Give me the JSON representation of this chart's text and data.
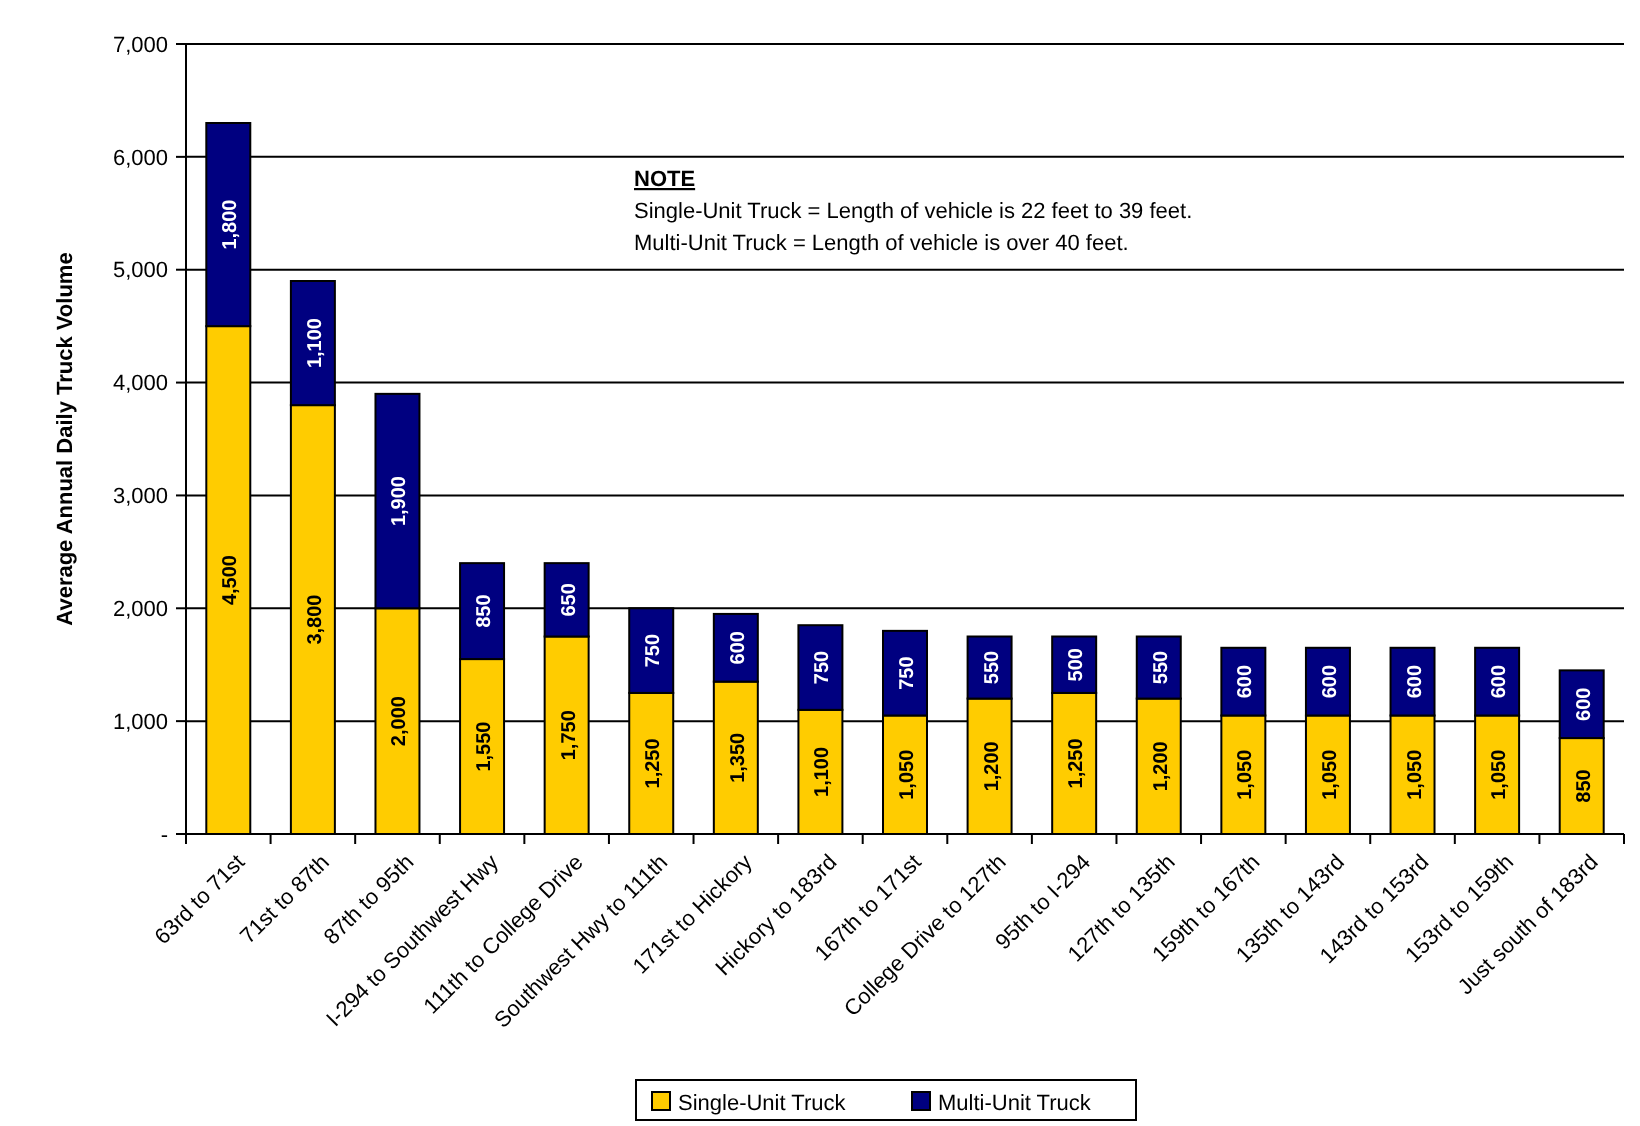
{
  "chart_data": {
    "type": "bar",
    "stacked": true,
    "ylabel": "Average Annual Daily Truck Volume",
    "categories": [
      "63rd to 71st",
      "71st to 87th",
      "87th to 95th",
      "I-294 to Southwest Hwy",
      "111th to College Drive",
      "Southwest Hwy to 111th",
      "171st to Hickory",
      "Hickory to 183rd",
      "167th to 171st",
      "College Drive to 127th",
      "95th to I-294",
      "127th to 135th",
      "159th to 167th",
      "135th to 143rd",
      "143rd to 153rd",
      "153rd to 159th",
      "Just south of 183rd"
    ],
    "series": [
      {
        "name": "Single-Unit Truck",
        "color": "#ffcc00",
        "values": [
          4500,
          3800,
          2000,
          1550,
          1750,
          1250,
          1350,
          1100,
          1050,
          1200,
          1250,
          1200,
          1050,
          1050,
          1050,
          1050,
          850
        ],
        "value_labels": [
          "4,500",
          "3,800",
          "2,000",
          "1,550",
          "1,750",
          "1,250",
          "1,350",
          "1,100",
          "1,050",
          "1,200",
          "1,250",
          "1,200",
          "1,050",
          "1,050",
          "1,050",
          "1,050",
          "850"
        ]
      },
      {
        "name": "Multi-Unit Truck",
        "color": "#000080",
        "values": [
          1800,
          1100,
          1900,
          850,
          650,
          750,
          600,
          750,
          750,
          550,
          500,
          550,
          600,
          600,
          600,
          600,
          600
        ],
        "value_labels": [
          "1,800",
          "1,100",
          "1,900",
          "850",
          "650",
          "750",
          "600",
          "750",
          "750",
          "550",
          "500",
          "550",
          "600",
          "600",
          "600",
          "600",
          "600"
        ]
      }
    ],
    "ylim": [
      0,
      7000
    ],
    "yticks": [
      {
        "value": 0,
        "label": "-"
      },
      {
        "value": 1000,
        "label": "1,000"
      },
      {
        "value": 2000,
        "label": "2,000"
      },
      {
        "value": 3000,
        "label": "3,000"
      },
      {
        "value": 4000,
        "label": "4,000"
      },
      {
        "value": 5000,
        "label": "5,000"
      },
      {
        "value": 6000,
        "label": "6,000"
      },
      {
        "value": 7000,
        "label": "7,000"
      }
    ],
    "grid": "y",
    "legend": "bottom",
    "annotations": [
      "NOTE",
      "Single-Unit Truck = Length of vehicle is 22 feet to 39 feet.",
      "Multi-Unit Truck = Length of vehicle is over 40 feet."
    ]
  }
}
